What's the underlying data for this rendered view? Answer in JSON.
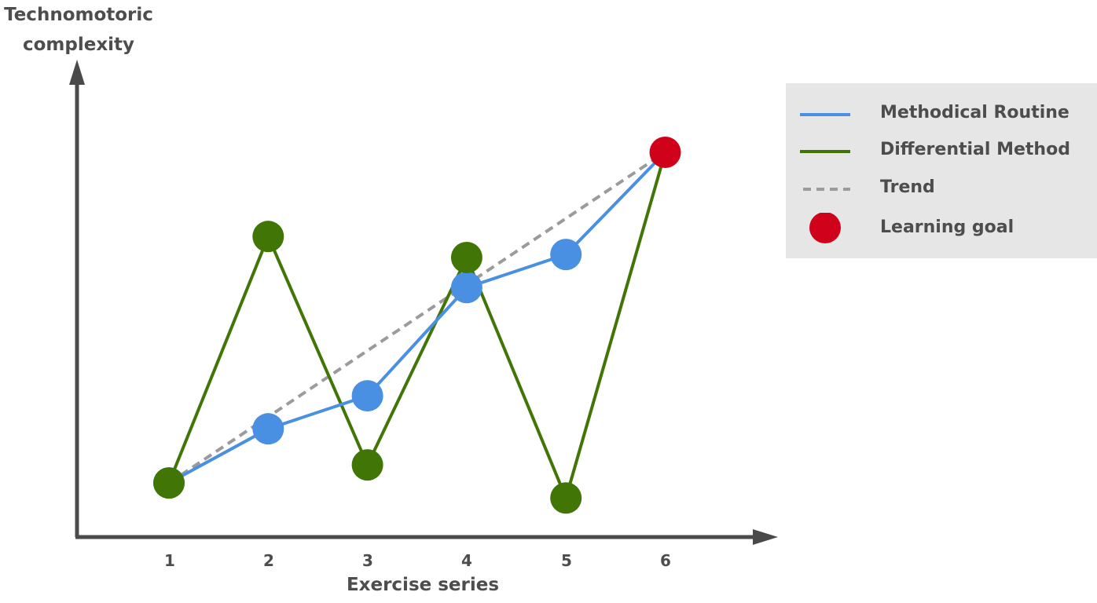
{
  "chart_data": {
    "type": "line",
    "ylabel_line1": "Technomotoric",
    "ylabel_line2": "complexity",
    "xlabel": "Exercise series",
    "categories": [
      "1",
      "2",
      "3",
      "4",
      "5",
      "6"
    ],
    "series": [
      {
        "name": "Methodical Routine",
        "color": "#4a90e2",
        "values": [
          1.0,
          2.8,
          3.9,
          7.5,
          8.6,
          12.0
        ]
      },
      {
        "name": "Differential Method",
        "color": "#417505",
        "values": [
          1.0,
          9.2,
          1.6,
          8.5,
          0.5,
          12.0
        ]
      },
      {
        "name": "Trend",
        "color": "#9b9b9b",
        "dashed": true,
        "values": [
          1.0,
          3.2,
          5.4,
          7.6,
          9.8,
          12.0
        ]
      }
    ],
    "goal": {
      "name": "Learning goal",
      "color": "#d0021b",
      "category": "6",
      "value": 12.0
    },
    "ylim": [
      -0.8,
      15.5
    ],
    "grid": false,
    "legend_position": "right"
  }
}
